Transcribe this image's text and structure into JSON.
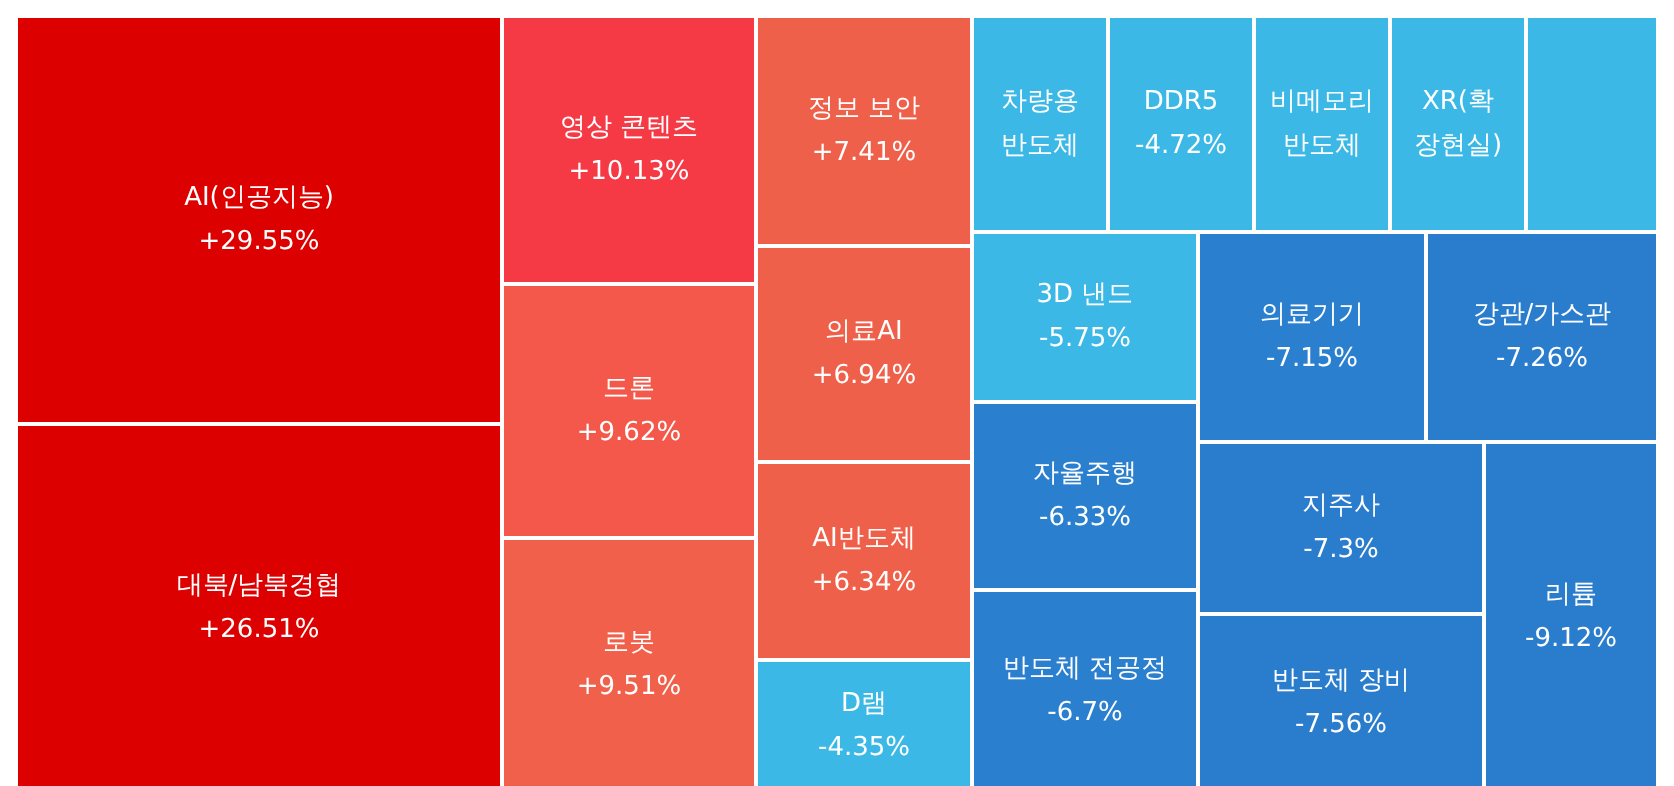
{
  "chart_data": {
    "type": "other",
    "categories": [
      "AI(인공지능)",
      "대북/남북경협",
      "영상 콘텐츠",
      "드론",
      "로봇",
      "정보 보안",
      "의료AI",
      "AI반도체",
      "D램",
      "차량용 반도체",
      "DDR5",
      "비메모리 반도체",
      "XR(확장현실)",
      null,
      "3D 낸드",
      "자율주행",
      "반도체 전공정",
      "의료기기",
      "강관/가스관",
      "지주사",
      "반도체 장비",
      "리튬"
    ],
    "values": [
      29.55,
      26.51,
      10.13,
      9.62,
      9.51,
      7.41,
      6.94,
      6.34,
      -4.35,
      null,
      -4.72,
      null,
      null,
      null,
      -5.75,
      -6.33,
      -6.7,
      -7.15,
      -7.26,
      -7.3,
      -7.56,
      -9.12
    ],
    "value_labels": [
      "+29.55%",
      "+26.51%",
      "+10.13%",
      "+9.62%",
      "+9.51%",
      "+7.41%",
      "+6.94%",
      "+6.34%",
      "-4.35%",
      null,
      "-4.72%",
      null,
      null,
      null,
      "-5.75%",
      "-6.33%",
      "-6.7%",
      "-7.15%",
      "-7.26%",
      "-7.3%",
      "-7.56%",
      "-9.12%"
    ],
    "colors": [
      "#dd0000",
      "#dd0000",
      "#f53a45",
      "#f4584a",
      "#f0604a",
      "#ef604a",
      "#ef604a",
      "#ef604a",
      "#3bb8e6",
      "#3bb8e6",
      "#3bb8e6",
      "#3bb8e6",
      "#3bb8e6",
      "#3bb8e6",
      "#3bb8e6",
      "#2a80cf",
      "#2a80cf",
      "#2a80cf",
      "#2a7ccc",
      "#2a7ccc",
      "#2a7ccc",
      "#2a7ccc"
    ]
  }
}
